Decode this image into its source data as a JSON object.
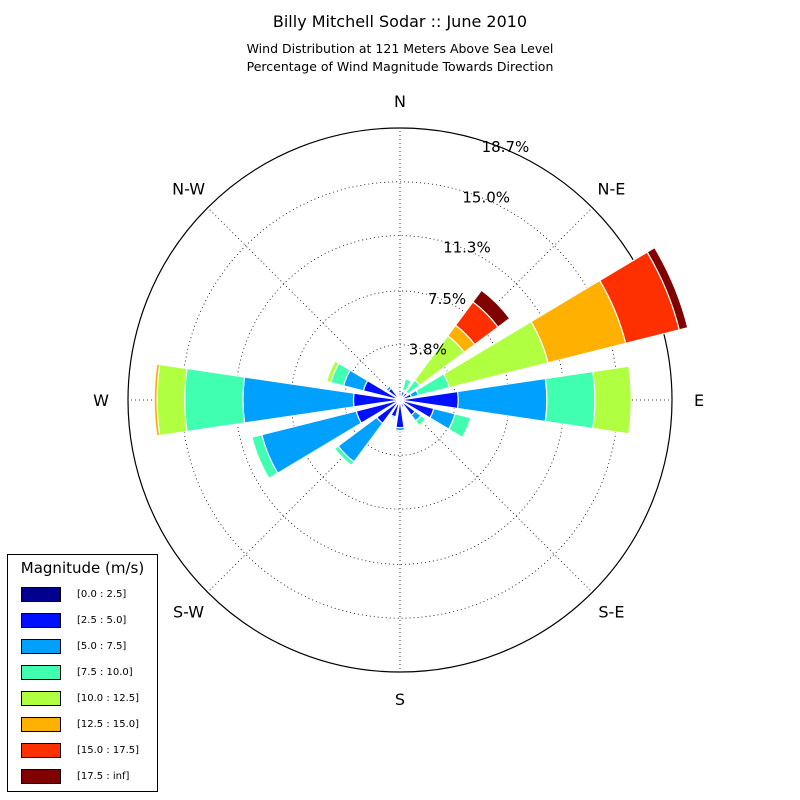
{
  "title": "Billy Mitchell Sodar :: June 2010",
  "subtitle_line1": "Wind Distribution at 121 Meters Above Sea Level",
  "subtitle_line2": "Percentage of Wind Magnitude Towards Direction",
  "legend": {
    "title": "Magnitude (m/s)",
    "items": [
      {
        "label": "[0.0 : 2.5]",
        "color": "#00008f"
      },
      {
        "label": "[2.5 : 5.0]",
        "color": "#0010ff"
      },
      {
        "label": "[5.0 : 7.5]",
        "color": "#00a0ff"
      },
      {
        "label": "[7.5 : 10.0]",
        "color": "#40ffb0"
      },
      {
        "label": "[10.0 : 12.5]",
        "color": "#b0ff40"
      },
      {
        "label": "[12.5 : 15.0]",
        "color": "#ffb000"
      },
      {
        "label": "[15.0 : 17.5]",
        "color": "#ff3000"
      },
      {
        "label": "[17.5 : inf]",
        "color": "#800000"
      }
    ]
  },
  "chart_data": {
    "type": "polar-stacked-bar",
    "title": "Billy Mitchell Sodar :: June 2010",
    "directions_deg": [
      0,
      22.5,
      45,
      67.5,
      90,
      112.5,
      135,
      157.5,
      180,
      202.5,
      225,
      247.5,
      270,
      292.5,
      315,
      337.5
    ],
    "direction_labels": [
      {
        "label": "N",
        "deg": 0
      },
      {
        "label": "N-E",
        "deg": 45
      },
      {
        "label": "E",
        "deg": 90
      },
      {
        "label": "S-E",
        "deg": 135
      },
      {
        "label": "S",
        "deg": 180
      },
      {
        "label": "S-W",
        "deg": 225
      },
      {
        "label": "W",
        "deg": 270
      },
      {
        "label": "N-W",
        "deg": 315
      }
    ],
    "radial_ticks": [
      "3.8%",
      "7.5%",
      "11.3%",
      "15.0%",
      "18.7%"
    ],
    "rmax": 18.7,
    "series": [
      {
        "name": "[0.0 : 2.5]",
        "values": [
          0.1,
          0.1,
          0.1,
          0.1,
          0.1,
          0.1,
          0.1,
          0.1,
          0.1,
          0.1,
          0.1,
          0.1,
          0.1,
          0.1,
          0.1,
          0.1
        ]
      },
      {
        "name": "[2.5 : 5.0]",
        "values": [
          0.4,
          0.5,
          0.5,
          0.7,
          3.9,
          2.3,
          1.2,
          0.4,
          1.8,
          1.1,
          1.9,
          3.0,
          3.1,
          2.5,
          0.9,
          0.3
        ]
      },
      {
        "name": "[5.0 : 7.5]",
        "values": [
          0.0,
          0.1,
          0.1,
          0.5,
          6.1,
          1.5,
          0.5,
          0.0,
          0.2,
          0.1,
          3.3,
          6.7,
          7.6,
          1.4,
          0.2,
          0.0
        ]
      },
      {
        "name": "[7.5 : 10.0]",
        "values": [
          0.0,
          0.8,
          1.0,
          2.2,
          3.3,
          1.1,
          0.4,
          0.0,
          0.1,
          0.1,
          0.3,
          0.7,
          4.0,
          0.9,
          0.1,
          0.0
        ]
      },
      {
        "name": "[10.0 : 12.5]",
        "values": [
          0.0,
          0.0,
          3.8,
          7.0,
          2.5,
          0.0,
          0.1,
          0.0,
          0.0,
          0.0,
          0.0,
          0.0,
          1.9,
          0.3,
          0.0,
          0.0
        ]
      },
      {
        "name": "[12.5 : 15.0]",
        "values": [
          0.0,
          0.0,
          0.9,
          5.5,
          0.0,
          0.0,
          0.0,
          0.0,
          0.0,
          0.0,
          0.0,
          0.0,
          0.2,
          0.0,
          0.0,
          0.0
        ]
      },
      {
        "name": "[15.0 : 17.5]",
        "values": [
          0.0,
          0.0,
          2.0,
          3.8,
          0.0,
          0.0,
          0.0,
          0.0,
          0.0,
          0.0,
          0.0,
          0.0,
          0.0,
          0.0,
          0.0,
          0.0
        ]
      },
      {
        "name": "[17.5 : inf]",
        "values": [
          0.0,
          0.0,
          1.0,
          0.6,
          0.0,
          0.0,
          0.0,
          0.0,
          0.0,
          0.0,
          0.0,
          0.0,
          0.0,
          0.0,
          0.0,
          0.0
        ]
      }
    ]
  }
}
